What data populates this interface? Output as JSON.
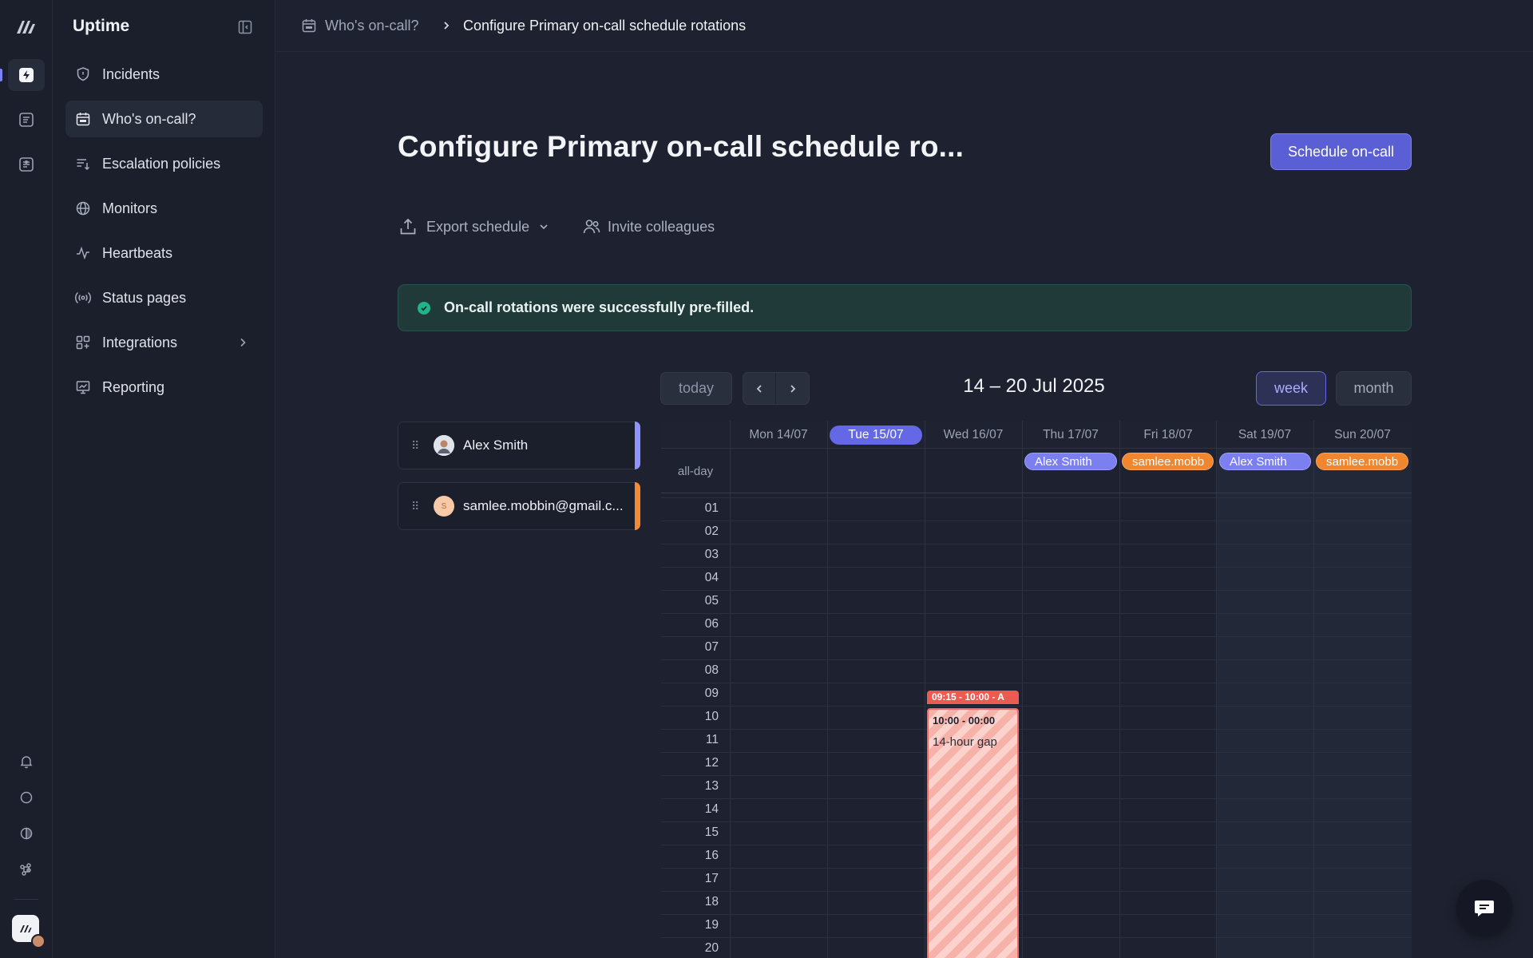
{
  "app": {
    "name": "Uptime"
  },
  "nav": {
    "items": [
      {
        "label": "Incidents",
        "icon": "shield-icon"
      },
      {
        "label": "Who's on-call?",
        "icon": "calendar-icon"
      },
      {
        "label": "Escalation policies",
        "icon": "escalation-icon"
      },
      {
        "label": "Monitors",
        "icon": "globe-icon"
      },
      {
        "label": "Heartbeats",
        "icon": "pulse-icon"
      },
      {
        "label": "Status pages",
        "icon": "broadcast-icon"
      },
      {
        "label": "Integrations",
        "icon": "grid-icon"
      },
      {
        "label": "Reporting",
        "icon": "presentation-chart-icon"
      }
    ]
  },
  "breadcrumb": {
    "parent": "Who's on-call?",
    "current": "Configure Primary on-call schedule rotations"
  },
  "page": {
    "title": "Configure Primary on-call schedule ro...",
    "primary_button": "Schedule on-call",
    "export_label": "Export schedule",
    "invite_label": "Invite colleagues",
    "alert_text": "On-call rotations were successfully pre-filled."
  },
  "calendar": {
    "today_label": "today",
    "range": "14 – 20 Jul 2025",
    "views": [
      "week",
      "month"
    ],
    "active_view": "week",
    "days": [
      "Mon 14/07",
      "Tue 15/07",
      "Wed 16/07",
      "Thu 17/07",
      "Fri 18/07",
      "Sat 19/07",
      "Sun 20/07"
    ],
    "today_index": 1,
    "allday_label": "all-day",
    "hours": [
      "01",
      "02",
      "03",
      "04",
      "05",
      "06",
      "07",
      "08",
      "09",
      "10",
      "11",
      "12",
      "13",
      "14",
      "15",
      "16",
      "17",
      "18",
      "19",
      "20"
    ],
    "allday_events": [
      {
        "label": "Alex Smith",
        "day": 3,
        "color": "blue"
      },
      {
        "label": "samlee.mobb",
        "day": 4,
        "color": "orange"
      },
      {
        "label": "Alex Smith",
        "day": 5,
        "color": "blue"
      },
      {
        "label": "samlee.mobb",
        "day": 6,
        "color": "orange"
      }
    ],
    "events": [
      {
        "time": "09:15 - 10:00 - A",
        "day": 2
      },
      {
        "time": "10:00 - 00:00",
        "note": "14-hour gap",
        "day": 2
      }
    ]
  },
  "people": [
    {
      "name": "Alex Smith",
      "color": "#8f93ff"
    },
    {
      "name": "samlee.mobbin@gmail.c...",
      "initial": "S",
      "color": "#f28a35"
    }
  ],
  "colors": {
    "accent": "#5b5fd6",
    "success": "#1fb58a",
    "gap": "#ee6c61"
  }
}
